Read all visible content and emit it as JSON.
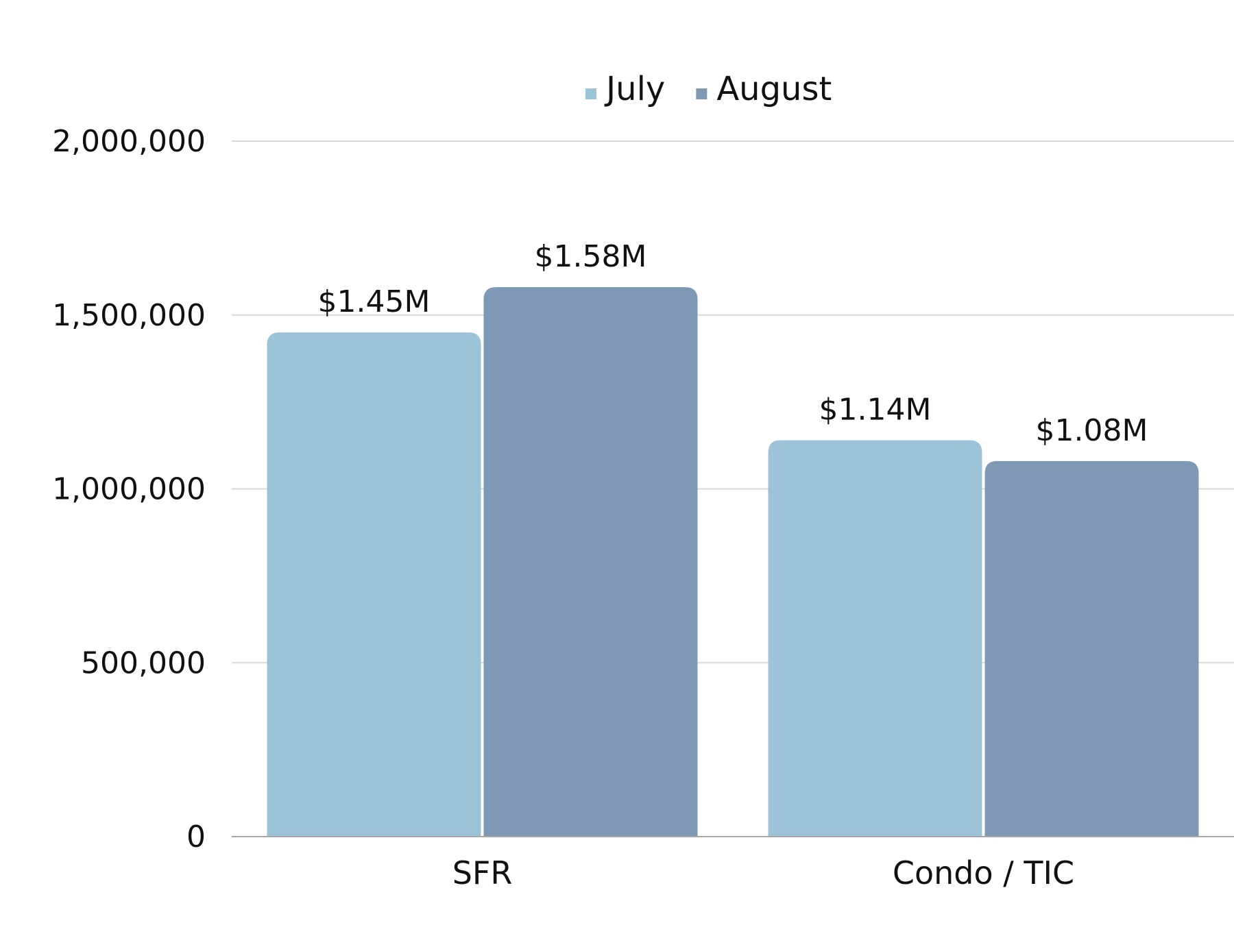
{
  "chart_data": {
    "type": "bar",
    "categories": [
      "SFR",
      "Condo / TIC"
    ],
    "series": [
      {
        "name": "July",
        "values": [
          1450000,
          1140000
        ],
        "labels": [
          "$1.45M",
          "$1.14M"
        ],
        "color": "#9DC3D8"
      },
      {
        "name": "August",
        "values": [
          1580000,
          1080000
        ],
        "labels": [
          "$1.58M",
          "$1.08M"
        ],
        "color": "#7F98B4"
      }
    ],
    "y_ticks": [
      "0",
      "500,000",
      "1,000,000",
      "1,500,000",
      "2,000,000"
    ],
    "ylim": [
      0,
      2000000
    ],
    "grid": true,
    "legend_position": "top-center",
    "gridline_color": "#D9D9D9",
    "axis_color": "#A6A6A6",
    "title": "",
    "xlabel": "",
    "ylabel": ""
  }
}
